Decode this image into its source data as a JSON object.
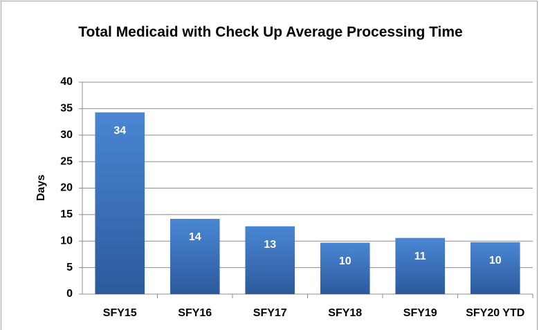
{
  "chart_data": {
    "type": "bar",
    "title": "Total Medicaid with Check Up Average Processing Time",
    "y_label": "Days",
    "categories": [
      "SFY15",
      "SFY16",
      "SFY17",
      "SFY18",
      "SFY19",
      "SFY20 YTD"
    ],
    "values": [
      34.3,
      14.2,
      12.8,
      9.7,
      10.6,
      9.8
    ],
    "value_labels": [
      "34",
      "14",
      "13",
      "10",
      "11",
      "10"
    ],
    "color": "#3a6fb8",
    "ylim": [
      0,
      40
    ],
    "yticks": [
      0,
      5,
      10,
      15,
      20,
      25,
      30,
      35,
      40
    ],
    "grid": true
  }
}
